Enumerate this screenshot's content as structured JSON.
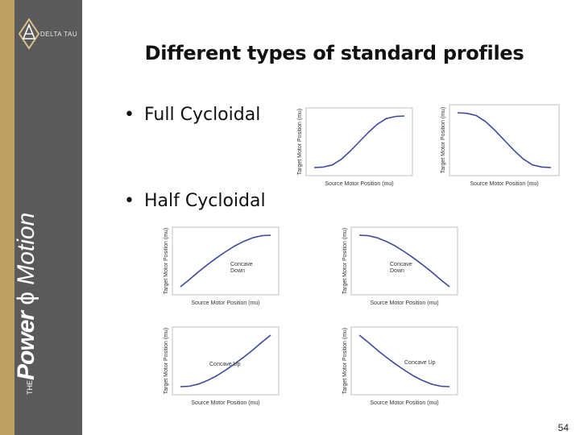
{
  "brand": {
    "logo_text": "DELTA TAU",
    "tag_the": "THE",
    "tag_power": "Power",
    "tag_motion": "Motion"
  },
  "slide": {
    "title": "Different types of standard profiles",
    "bullets": [
      "Full Cycloidal",
      "Half Cycloidal"
    ],
    "page_number": "54"
  },
  "chart_data": [
    {
      "type": "line",
      "xlabel": "Source Motor Position (mu)",
      "ylabel": "Target Motor Position (mu)",
      "annotation": "",
      "curve": "full-rise",
      "y": [
        0,
        0.01,
        0.05,
        0.16,
        0.32,
        0.5,
        0.68,
        0.84,
        0.95,
        0.99,
        1
      ]
    },
    {
      "type": "line",
      "xlabel": "Source Motor Position (mu)",
      "ylabel": "Target Motor Position (mu)",
      "annotation": "",
      "curve": "full-fall",
      "y": [
        1,
        0.99,
        0.95,
        0.84,
        0.68,
        0.5,
        0.32,
        0.16,
        0.05,
        0.01,
        0
      ]
    },
    {
      "type": "line",
      "xlabel": "Source Motor Position (mu)",
      "ylabel": "Target Motor Position (mu)",
      "annotation": "Concave Down",
      "curve": "half-rise-concave-down",
      "y": [
        0,
        0.14,
        0.29,
        0.43,
        0.56,
        0.68,
        0.79,
        0.88,
        0.95,
        0.99,
        1
      ]
    },
    {
      "type": "line",
      "xlabel": "Source Motor Position (mu)",
      "ylabel": "Target Motor Position (mu)",
      "annotation": "Concave Down",
      "curve": "half-fall-concave-down",
      "y": [
        1,
        0.99,
        0.95,
        0.88,
        0.79,
        0.68,
        0.56,
        0.43,
        0.29,
        0.14,
        0
      ]
    },
    {
      "type": "line",
      "xlabel": "Source Motor Position (mu)",
      "ylabel": "Target Motor Position (mu)",
      "annotation": "Concave Up",
      "curve": "half-rise-concave-up",
      "y": [
        0,
        0.01,
        0.05,
        0.12,
        0.21,
        0.32,
        0.44,
        0.57,
        0.71,
        0.86,
        1
      ]
    },
    {
      "type": "line",
      "xlabel": "Source Motor Position (mu)",
      "ylabel": "Target Motor Position (mu)",
      "annotation": "Concave Up",
      "curve": "half-fall-concave-up",
      "y": [
        1,
        0.86,
        0.71,
        0.57,
        0.44,
        0.32,
        0.21,
        0.12,
        0.05,
        0.01,
        0
      ]
    }
  ]
}
